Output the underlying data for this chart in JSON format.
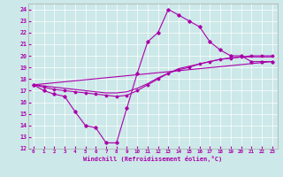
{
  "xlabel": "Windchill (Refroidissement éolien,°C)",
  "bg_color": "#cce8e8",
  "line_color": "#aa00aa",
  "xlim": [
    -0.5,
    23.5
  ],
  "ylim": [
    12,
    24.5
  ],
  "xticks": [
    0,
    1,
    2,
    3,
    4,
    5,
    6,
    7,
    8,
    9,
    10,
    11,
    12,
    13,
    14,
    15,
    16,
    17,
    18,
    19,
    20,
    21,
    22,
    23
  ],
  "yticks": [
    12,
    13,
    14,
    15,
    16,
    17,
    18,
    19,
    20,
    21,
    22,
    23,
    24
  ],
  "curve1_x": [
    0,
    1,
    2,
    3,
    4,
    5,
    6,
    7,
    8,
    9,
    10,
    11,
    12,
    13,
    14,
    15,
    16,
    17,
    18,
    19,
    20,
    21,
    22,
    23
  ],
  "curve1_y": [
    17.5,
    17.0,
    16.7,
    16.5,
    15.2,
    14.0,
    13.8,
    12.5,
    12.5,
    15.5,
    18.5,
    21.2,
    22.0,
    24.0,
    23.5,
    23.0,
    22.5,
    21.2,
    20.5,
    20.0,
    20.0,
    19.5,
    19.5,
    19.5
  ],
  "curve2_x": [
    0,
    1,
    2,
    3,
    4,
    5,
    6,
    7,
    8,
    9,
    10,
    11,
    12,
    13,
    14,
    15,
    16,
    17,
    18,
    19,
    20,
    21,
    22,
    23
  ],
  "curve2_y": [
    17.5,
    17.3,
    17.1,
    17.0,
    16.9,
    16.8,
    16.7,
    16.6,
    16.5,
    16.6,
    17.0,
    17.5,
    18.0,
    18.5,
    18.8,
    19.0,
    19.3,
    19.5,
    19.7,
    19.8,
    19.9,
    20.0,
    20.0,
    20.0
  ],
  "curve3_x": [
    0,
    1,
    2,
    3,
    4,
    5,
    6,
    7,
    8,
    9,
    10,
    11,
    12,
    13,
    14,
    15,
    16,
    17,
    18,
    19,
    20,
    21,
    22,
    23
  ],
  "curve3_y": [
    17.5,
    17.4,
    17.3,
    17.2,
    17.1,
    17.0,
    16.9,
    16.8,
    16.8,
    16.9,
    17.2,
    17.6,
    18.1,
    18.5,
    18.9,
    19.1,
    19.3,
    19.5,
    19.7,
    19.8,
    19.9,
    19.9,
    19.9,
    19.9
  ],
  "curve4_x": [
    0,
    23
  ],
  "curve4_y": [
    17.5,
    19.5
  ]
}
